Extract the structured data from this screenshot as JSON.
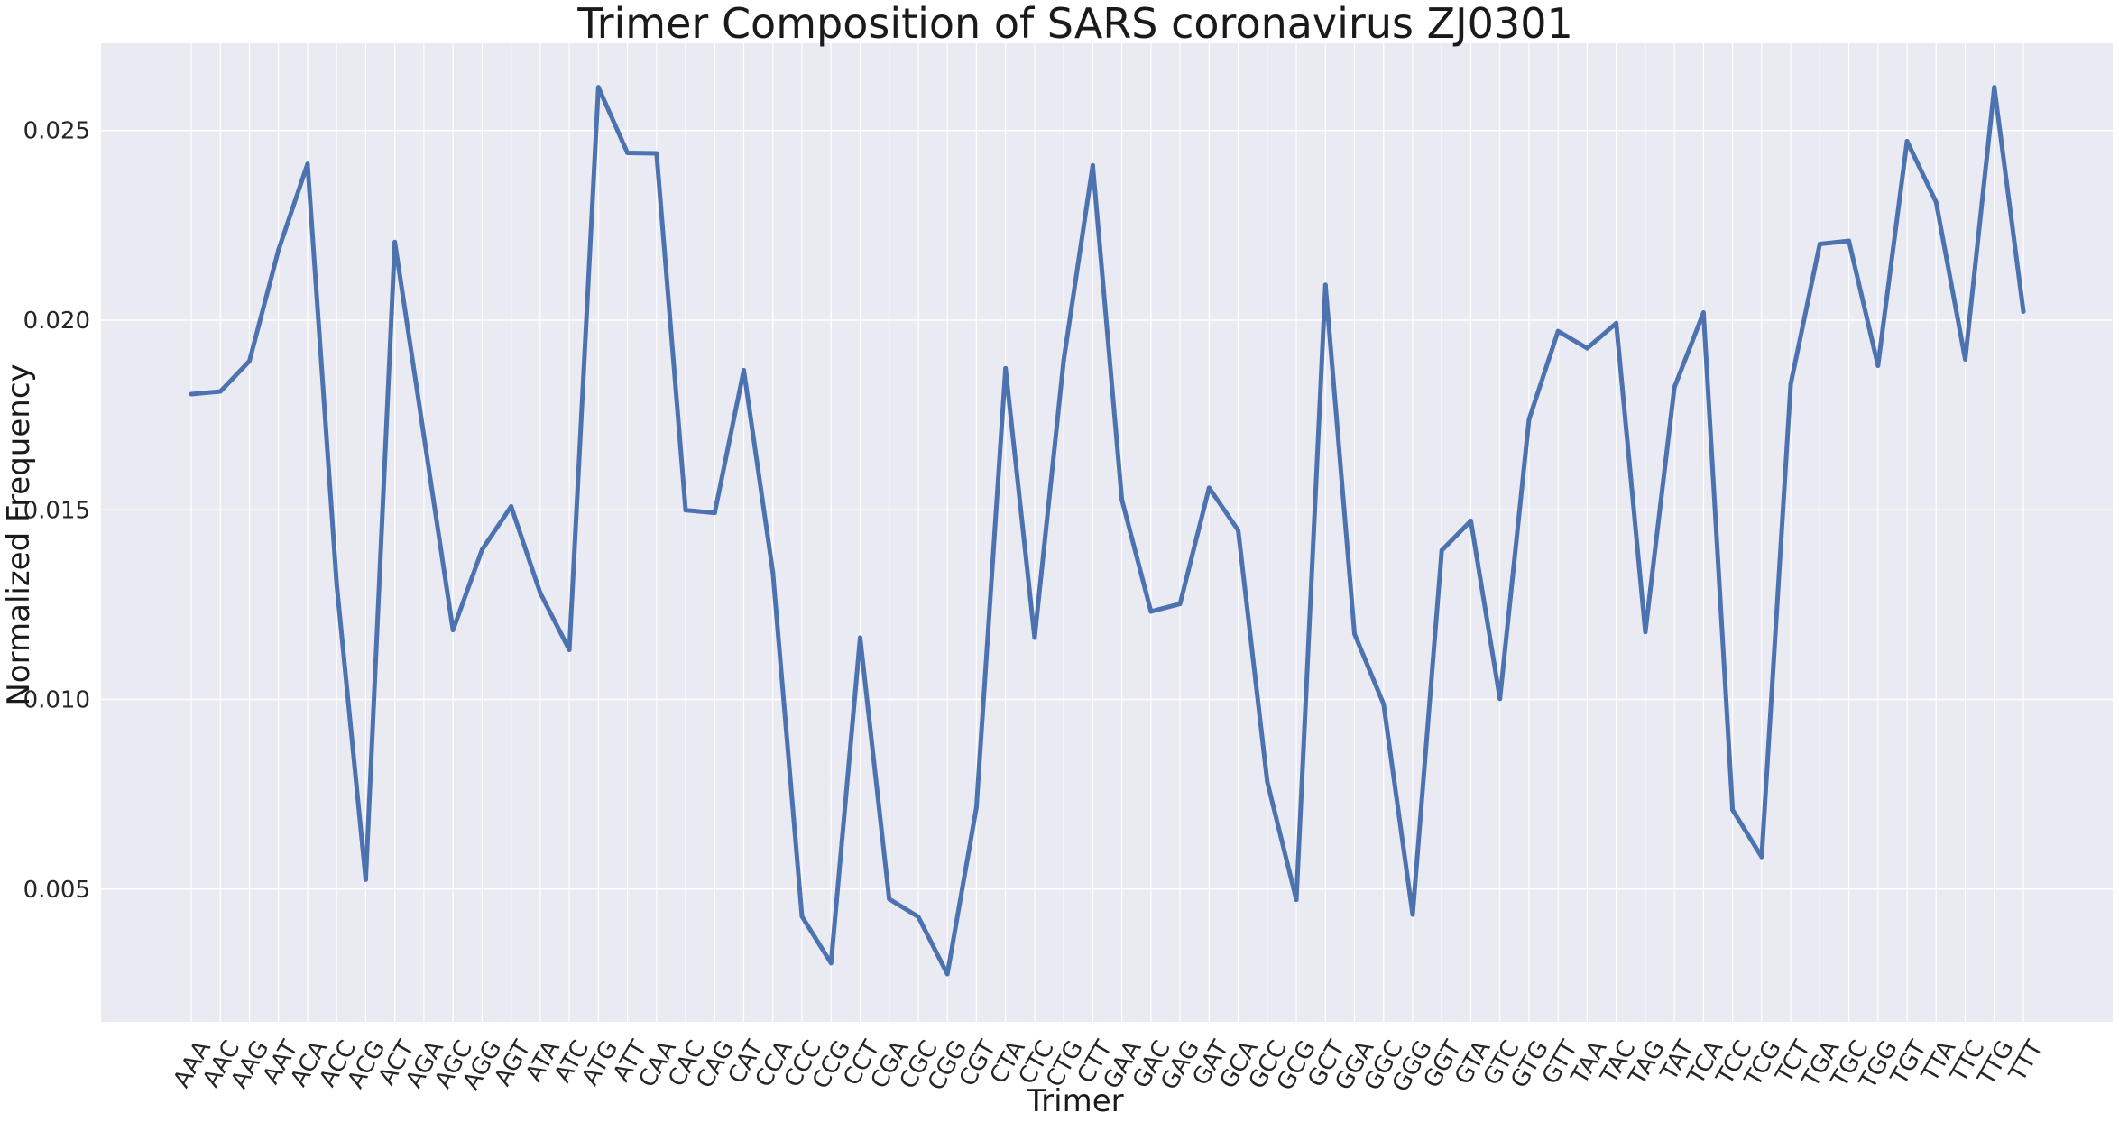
{
  "chart_data": {
    "type": "line",
    "title": "Trimer Composition of SARS coronavirus ZJ0301",
    "xlabel": "Trimer",
    "ylabel": "Normalized Frequency",
    "ylim": [
      0.0015,
      0.0273
    ],
    "yticks": [
      0.005,
      0.01,
      0.015,
      0.02,
      0.025
    ],
    "ytick_labels": [
      "0.005",
      "0.010",
      "0.015",
      "0.020",
      "0.025"
    ],
    "grid": true,
    "categories": [
      "AAA",
      "AAC",
      "AAG",
      "AAT",
      "ACA",
      "ACC",
      "ACG",
      "ACT",
      "AGA",
      "AGC",
      "AGG",
      "AGT",
      "ATA",
      "ATC",
      "ATG",
      "ATT",
      "CAA",
      "CAC",
      "CAG",
      "CAT",
      "CCA",
      "CCC",
      "CCG",
      "CCT",
      "CGA",
      "CGC",
      "CGG",
      "CGT",
      "CTA",
      "CTC",
      "CTG",
      "CTT",
      "GAA",
      "GAC",
      "GAG",
      "GAT",
      "GCA",
      "GCC",
      "GCG",
      "GCT",
      "GGA",
      "GGC",
      "GGG",
      "GGT",
      "GTA",
      "GTC",
      "GTG",
      "GTT",
      "TAA",
      "TAC",
      "TAG",
      "TAT",
      "TCA",
      "TCC",
      "TCG",
      "TCT",
      "TGA",
      "TGC",
      "TGG",
      "TGT",
      "TTA",
      "TTC",
      "TTG",
      "TTT"
    ],
    "series": [
      {
        "values": [
          0.01805,
          0.01812,
          0.01892,
          0.02185,
          0.02412,
          0.01305,
          0.00525,
          0.02206,
          0.01695,
          0.01183,
          0.01395,
          0.01509,
          0.01281,
          0.01131,
          0.02614,
          0.02441,
          0.0244,
          0.01499,
          0.01492,
          0.01868,
          0.01335,
          0.00428,
          0.00305,
          0.01163,
          0.00474,
          0.00427,
          0.00276,
          0.00716,
          0.01873,
          0.01163,
          0.01894,
          0.02408,
          0.01527,
          0.01232,
          0.01252,
          0.01558,
          0.01446,
          0.00783,
          0.00472,
          0.02093,
          0.01173,
          0.00988,
          0.00433,
          0.01393,
          0.01471,
          0.01002,
          0.01738,
          0.01971,
          0.01926,
          0.01992,
          0.01178,
          0.01823,
          0.0202,
          0.00709,
          0.00585,
          0.01832,
          0.02201,
          0.02209,
          0.0188,
          0.02472,
          0.02311,
          0.01897,
          0.02614,
          0.02023
        ]
      }
    ],
    "colors": {
      "line": "#4c72b0",
      "plot_background": "#eaeaf2",
      "grid": "#ffffff",
      "page_background": "#ffffff",
      "text": "#1a1a1a"
    }
  }
}
